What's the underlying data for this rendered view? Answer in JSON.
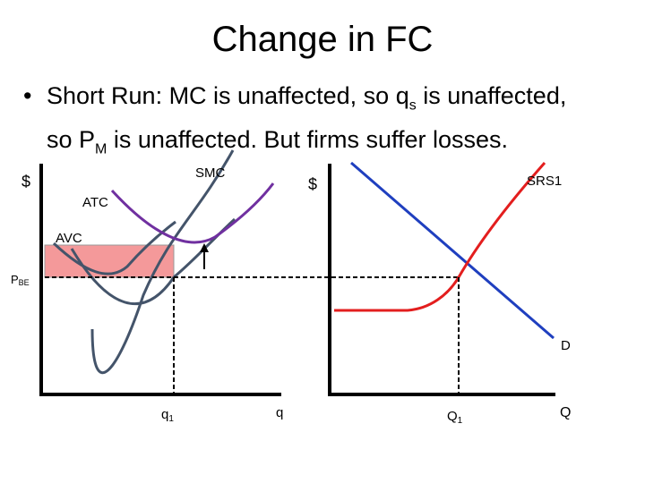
{
  "title": "Change in FC",
  "bullet": {
    "marker": "•",
    "seg1": "Short Run: MC is unaffected, so q",
    "sub1": "s",
    "seg2": " is unaffected,",
    "seg3": "so P",
    "sub2": "M",
    "seg4": " is unaffected. But firms suffer losses."
  },
  "firm_graph": {
    "y_axis_label": "$",
    "x_axis_label": "q",
    "curves": [
      "SMC",
      "ATC",
      "AVC"
    ],
    "price_label": "P",
    "price_sub": "BE",
    "quantity_label": "q",
    "quantity_sub": "1",
    "loss_color": "#f4999a",
    "atc_color": "#7030a0",
    "curve_color": "#44546a"
  },
  "market_graph": {
    "y_axis_label": "$",
    "x_axis_label": "Q",
    "supply_label": "SRS1",
    "demand_label": "D",
    "quantity_label": "Q",
    "quantity_sub": "1",
    "supply_color": "#e31e1e",
    "demand_color": "#1f3fbf"
  }
}
